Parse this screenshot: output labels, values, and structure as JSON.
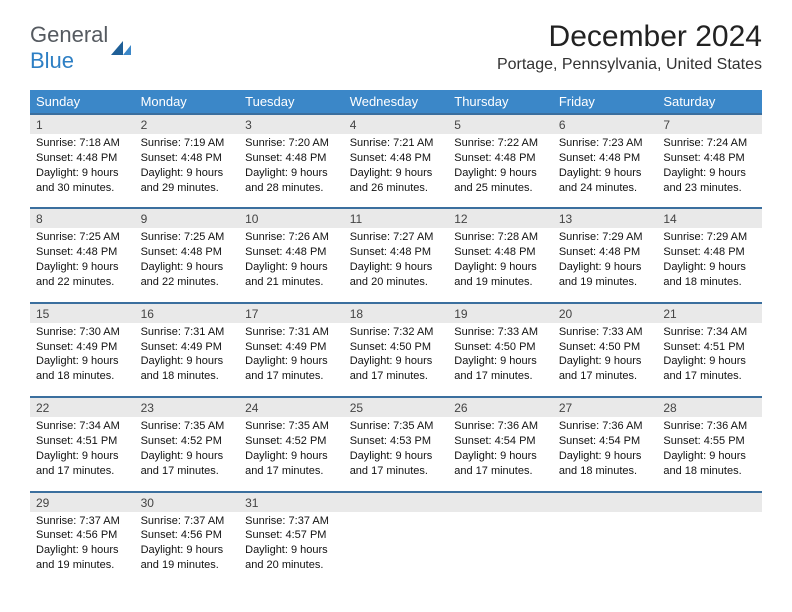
{
  "logo": {
    "text1": "General",
    "text2": "Blue"
  },
  "title": "December 2024",
  "location": "Portage, Pennsylvania, United States",
  "colors": {
    "header_bg": "#3b87c8",
    "header_fg": "#ffffff",
    "daynum_bg": "#e9e9e9",
    "row_border": "#3b6f9e",
    "logo_gray": "#555a60",
    "logo_blue": "#2d7fc4"
  },
  "day_headers": [
    "Sunday",
    "Monday",
    "Tuesday",
    "Wednesday",
    "Thursday",
    "Friday",
    "Saturday"
  ],
  "weeks": [
    [
      {
        "num": "1",
        "sunrise": "Sunrise: 7:18 AM",
        "sunset": "Sunset: 4:48 PM",
        "day1": "Daylight: 9 hours",
        "day2": "and 30 minutes."
      },
      {
        "num": "2",
        "sunrise": "Sunrise: 7:19 AM",
        "sunset": "Sunset: 4:48 PM",
        "day1": "Daylight: 9 hours",
        "day2": "and 29 minutes."
      },
      {
        "num": "3",
        "sunrise": "Sunrise: 7:20 AM",
        "sunset": "Sunset: 4:48 PM",
        "day1": "Daylight: 9 hours",
        "day2": "and 28 minutes."
      },
      {
        "num": "4",
        "sunrise": "Sunrise: 7:21 AM",
        "sunset": "Sunset: 4:48 PM",
        "day1": "Daylight: 9 hours",
        "day2": "and 26 minutes."
      },
      {
        "num": "5",
        "sunrise": "Sunrise: 7:22 AM",
        "sunset": "Sunset: 4:48 PM",
        "day1": "Daylight: 9 hours",
        "day2": "and 25 minutes."
      },
      {
        "num": "6",
        "sunrise": "Sunrise: 7:23 AM",
        "sunset": "Sunset: 4:48 PM",
        "day1": "Daylight: 9 hours",
        "day2": "and 24 minutes."
      },
      {
        "num": "7",
        "sunrise": "Sunrise: 7:24 AM",
        "sunset": "Sunset: 4:48 PM",
        "day1": "Daylight: 9 hours",
        "day2": "and 23 minutes."
      }
    ],
    [
      {
        "num": "8",
        "sunrise": "Sunrise: 7:25 AM",
        "sunset": "Sunset: 4:48 PM",
        "day1": "Daylight: 9 hours",
        "day2": "and 22 minutes."
      },
      {
        "num": "9",
        "sunrise": "Sunrise: 7:25 AM",
        "sunset": "Sunset: 4:48 PM",
        "day1": "Daylight: 9 hours",
        "day2": "and 22 minutes."
      },
      {
        "num": "10",
        "sunrise": "Sunrise: 7:26 AM",
        "sunset": "Sunset: 4:48 PM",
        "day1": "Daylight: 9 hours",
        "day2": "and 21 minutes."
      },
      {
        "num": "11",
        "sunrise": "Sunrise: 7:27 AM",
        "sunset": "Sunset: 4:48 PM",
        "day1": "Daylight: 9 hours",
        "day2": "and 20 minutes."
      },
      {
        "num": "12",
        "sunrise": "Sunrise: 7:28 AM",
        "sunset": "Sunset: 4:48 PM",
        "day1": "Daylight: 9 hours",
        "day2": "and 19 minutes."
      },
      {
        "num": "13",
        "sunrise": "Sunrise: 7:29 AM",
        "sunset": "Sunset: 4:48 PM",
        "day1": "Daylight: 9 hours",
        "day2": "and 19 minutes."
      },
      {
        "num": "14",
        "sunrise": "Sunrise: 7:29 AM",
        "sunset": "Sunset: 4:48 PM",
        "day1": "Daylight: 9 hours",
        "day2": "and 18 minutes."
      }
    ],
    [
      {
        "num": "15",
        "sunrise": "Sunrise: 7:30 AM",
        "sunset": "Sunset: 4:49 PM",
        "day1": "Daylight: 9 hours",
        "day2": "and 18 minutes."
      },
      {
        "num": "16",
        "sunrise": "Sunrise: 7:31 AM",
        "sunset": "Sunset: 4:49 PM",
        "day1": "Daylight: 9 hours",
        "day2": "and 18 minutes."
      },
      {
        "num": "17",
        "sunrise": "Sunrise: 7:31 AM",
        "sunset": "Sunset: 4:49 PM",
        "day1": "Daylight: 9 hours",
        "day2": "and 17 minutes."
      },
      {
        "num": "18",
        "sunrise": "Sunrise: 7:32 AM",
        "sunset": "Sunset: 4:50 PM",
        "day1": "Daylight: 9 hours",
        "day2": "and 17 minutes."
      },
      {
        "num": "19",
        "sunrise": "Sunrise: 7:33 AM",
        "sunset": "Sunset: 4:50 PM",
        "day1": "Daylight: 9 hours",
        "day2": "and 17 minutes."
      },
      {
        "num": "20",
        "sunrise": "Sunrise: 7:33 AM",
        "sunset": "Sunset: 4:50 PM",
        "day1": "Daylight: 9 hours",
        "day2": "and 17 minutes."
      },
      {
        "num": "21",
        "sunrise": "Sunrise: 7:34 AM",
        "sunset": "Sunset: 4:51 PM",
        "day1": "Daylight: 9 hours",
        "day2": "and 17 minutes."
      }
    ],
    [
      {
        "num": "22",
        "sunrise": "Sunrise: 7:34 AM",
        "sunset": "Sunset: 4:51 PM",
        "day1": "Daylight: 9 hours",
        "day2": "and 17 minutes."
      },
      {
        "num": "23",
        "sunrise": "Sunrise: 7:35 AM",
        "sunset": "Sunset: 4:52 PM",
        "day1": "Daylight: 9 hours",
        "day2": "and 17 minutes."
      },
      {
        "num": "24",
        "sunrise": "Sunrise: 7:35 AM",
        "sunset": "Sunset: 4:52 PM",
        "day1": "Daylight: 9 hours",
        "day2": "and 17 minutes."
      },
      {
        "num": "25",
        "sunrise": "Sunrise: 7:35 AM",
        "sunset": "Sunset: 4:53 PM",
        "day1": "Daylight: 9 hours",
        "day2": "and 17 minutes."
      },
      {
        "num": "26",
        "sunrise": "Sunrise: 7:36 AM",
        "sunset": "Sunset: 4:54 PM",
        "day1": "Daylight: 9 hours",
        "day2": "and 17 minutes."
      },
      {
        "num": "27",
        "sunrise": "Sunrise: 7:36 AM",
        "sunset": "Sunset: 4:54 PM",
        "day1": "Daylight: 9 hours",
        "day2": "and 18 minutes."
      },
      {
        "num": "28",
        "sunrise": "Sunrise: 7:36 AM",
        "sunset": "Sunset: 4:55 PM",
        "day1": "Daylight: 9 hours",
        "day2": "and 18 minutes."
      }
    ],
    [
      {
        "num": "29",
        "sunrise": "Sunrise: 7:37 AM",
        "sunset": "Sunset: 4:56 PM",
        "day1": "Daylight: 9 hours",
        "day2": "and 19 minutes."
      },
      {
        "num": "30",
        "sunrise": "Sunrise: 7:37 AM",
        "sunset": "Sunset: 4:56 PM",
        "day1": "Daylight: 9 hours",
        "day2": "and 19 minutes."
      },
      {
        "num": "31",
        "sunrise": "Sunrise: 7:37 AM",
        "sunset": "Sunset: 4:57 PM",
        "day1": "Daylight: 9 hours",
        "day2": "and 20 minutes."
      },
      null,
      null,
      null,
      null
    ]
  ]
}
